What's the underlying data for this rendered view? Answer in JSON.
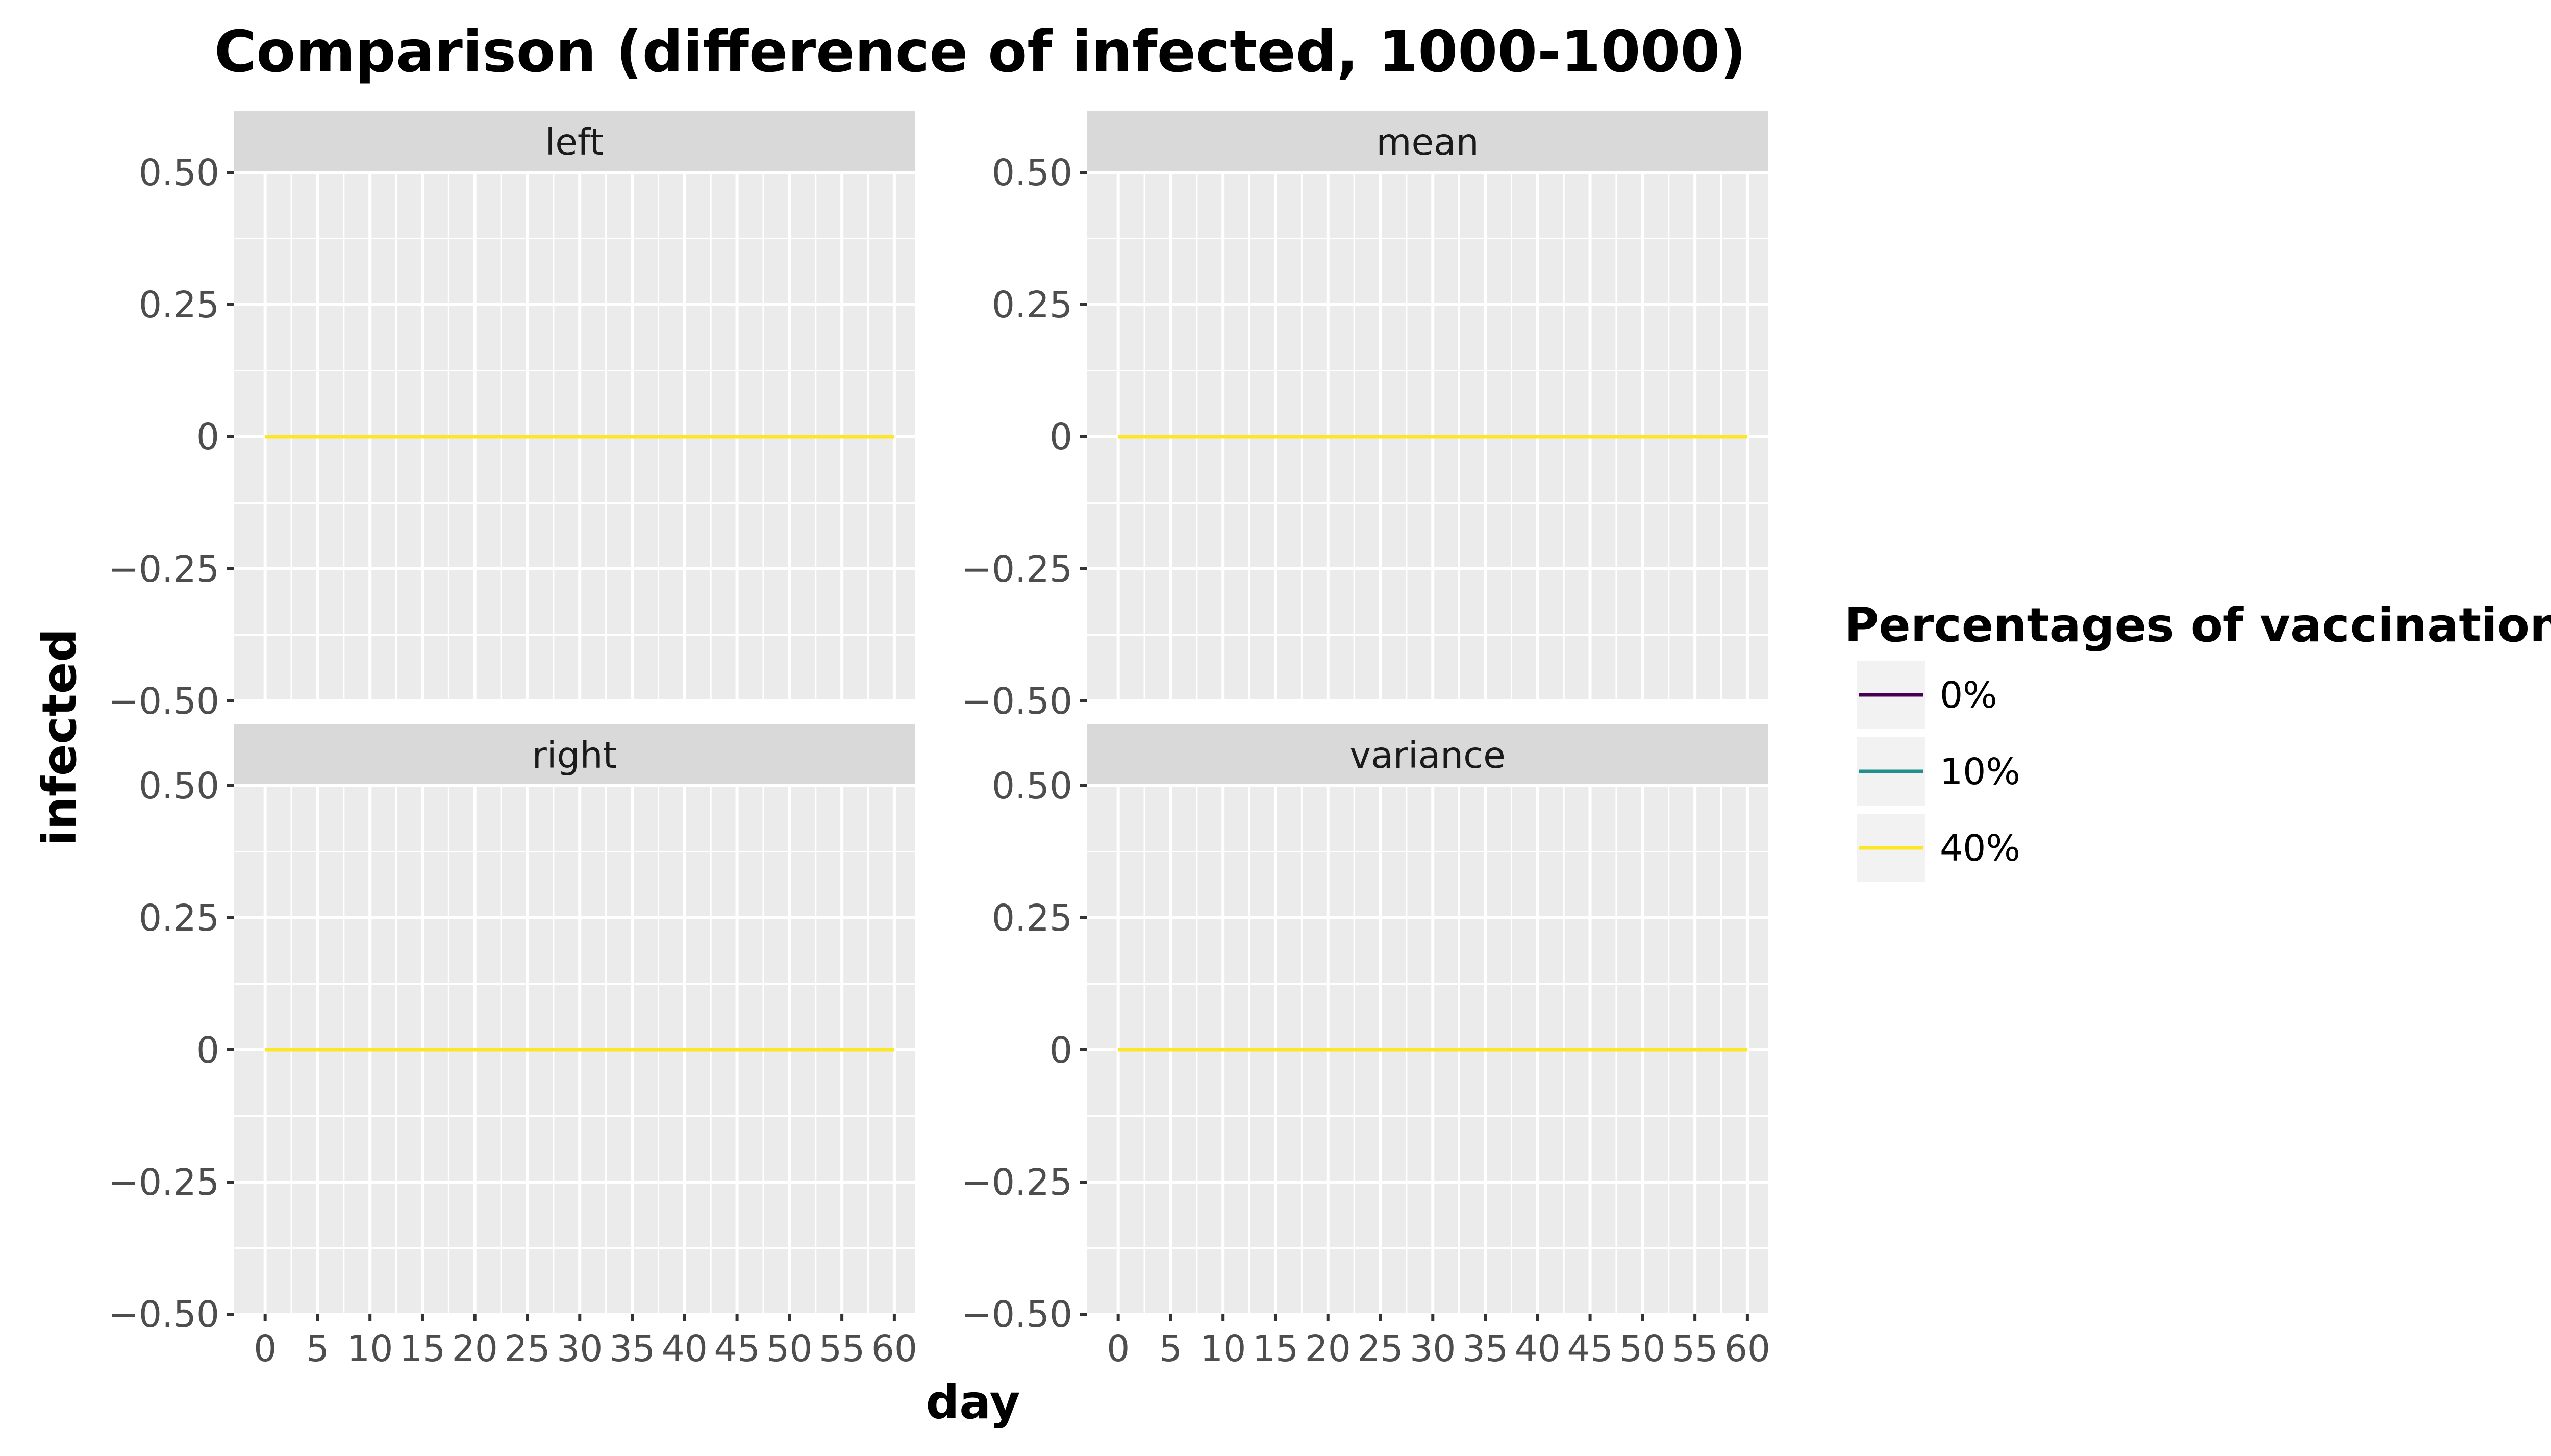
{
  "chart_data": {
    "type": "line",
    "title": "Comparison (difference of infected, 1000-1000)",
    "xlabel": "day",
    "ylabel": "infected",
    "xlim": [
      -3,
      62
    ],
    "ylim": [
      -0.5,
      0.5
    ],
    "x_ticks": [
      0,
      5,
      10,
      15,
      20,
      25,
      30,
      35,
      40,
      45,
      50,
      55,
      60
    ],
    "x_tick_labels": [
      "0",
      "5",
      "10",
      "15",
      "20",
      "25",
      "30",
      "35",
      "40",
      "45",
      "50",
      "55",
      "60"
    ],
    "y_ticks": [
      0.5,
      0.25,
      0,
      -0.25,
      -0.5
    ],
    "y_tick_labels": [
      "0.50",
      "0.25",
      "0",
      "−0.25",
      "−0.50"
    ],
    "grid": true,
    "legend": {
      "title": "Percentages of vaccination",
      "position": "right",
      "entries": [
        {
          "label": "0%",
          "color": "#440154"
        },
        {
          "label": "10%",
          "color": "#21908C"
        },
        {
          "label": "40%",
          "color": "#FDE725"
        }
      ]
    },
    "panels": [
      {
        "label": "left",
        "series": [
          {
            "name": "0%",
            "color": "#440154",
            "x": [
              0,
              60
            ],
            "y": [
              0,
              0
            ]
          },
          {
            "name": "10%",
            "color": "#21908C",
            "x": [
              0,
              60
            ],
            "y": [
              0,
              0
            ]
          },
          {
            "name": "40%",
            "color": "#FDE725",
            "x": [
              0,
              60
            ],
            "y": [
              0,
              0
            ]
          }
        ]
      },
      {
        "label": "mean",
        "series": [
          {
            "name": "0%",
            "color": "#440154",
            "x": [
              0,
              60
            ],
            "y": [
              0,
              0
            ]
          },
          {
            "name": "10%",
            "color": "#21908C",
            "x": [
              0,
              60
            ],
            "y": [
              0,
              0
            ]
          },
          {
            "name": "40%",
            "color": "#FDE725",
            "x": [
              0,
              60
            ],
            "y": [
              0,
              0
            ]
          }
        ]
      },
      {
        "label": "right",
        "series": [
          {
            "name": "0%",
            "color": "#440154",
            "x": [
              0,
              60
            ],
            "y": [
              0,
              0
            ]
          },
          {
            "name": "10%",
            "color": "#21908C",
            "x": [
              0,
              60
            ],
            "y": [
              0,
              0
            ]
          },
          {
            "name": "40%",
            "color": "#FDE725",
            "x": [
              0,
              60
            ],
            "y": [
              0,
              0
            ]
          }
        ]
      },
      {
        "label": "variance",
        "series": [
          {
            "name": "0%",
            "color": "#440154",
            "x": [
              0,
              60
            ],
            "y": [
              0,
              0
            ]
          },
          {
            "name": "10%",
            "color": "#21908C",
            "x": [
              0,
              60
            ],
            "y": [
              0,
              0
            ]
          },
          {
            "name": "40%",
            "color": "#FDE725",
            "x": [
              0,
              60
            ],
            "y": [
              0,
              0
            ]
          }
        ]
      }
    ],
    "colors": {
      "panel_background": "#EBEBEB",
      "strip_background": "#D9D9D9",
      "grid_line": "#FFFFFF"
    }
  }
}
